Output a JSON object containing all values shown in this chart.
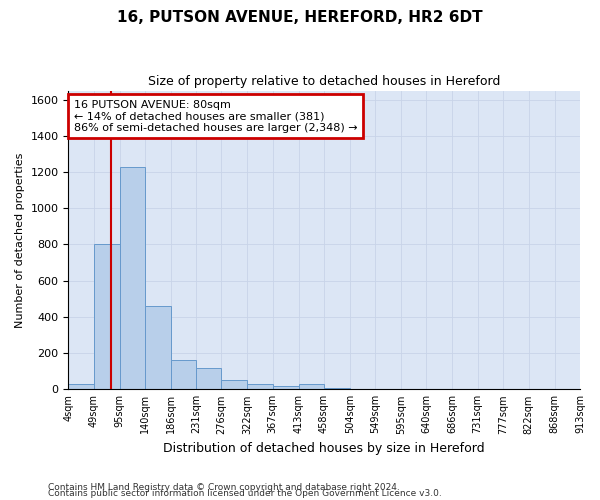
{
  "title": "16, PUTSON AVENUE, HEREFORD, HR2 6DT",
  "subtitle": "Size of property relative to detached houses in Hereford",
  "xlabel": "Distribution of detached houses by size in Hereford",
  "ylabel": "Number of detached properties",
  "footer1": "Contains HM Land Registry data © Crown copyright and database right 2024.",
  "footer2": "Contains public sector information licensed under the Open Government Licence v3.0.",
  "bin_labels": [
    "4sqm",
    "49sqm",
    "95sqm",
    "140sqm",
    "186sqm",
    "231sqm",
    "276sqm",
    "322sqm",
    "367sqm",
    "413sqm",
    "458sqm",
    "504sqm",
    "549sqm",
    "595sqm",
    "640sqm",
    "686sqm",
    "731sqm",
    "777sqm",
    "822sqm",
    "868sqm",
    "913sqm"
  ],
  "bin_edges": [
    4,
    49,
    95,
    140,
    186,
    231,
    276,
    322,
    367,
    413,
    458,
    504,
    549,
    595,
    640,
    686,
    731,
    777,
    822,
    868,
    913
  ],
  "bar_heights": [
    30,
    800,
    1230,
    460,
    160,
    120,
    50,
    30,
    20,
    30,
    5,
    0,
    0,
    0,
    0,
    0,
    0,
    0,
    0,
    0
  ],
  "bar_color": "#b8cfea",
  "bar_edge_color": "#6699cc",
  "grid_color": "#c8d4e8",
  "background_color": "#dce6f5",
  "property_line_x": 80,
  "property_line_color": "#cc0000",
  "annotation_line1": "16 PUTSON AVENUE: 80sqm",
  "annotation_line2": "← 14% of detached houses are smaller (381)",
  "annotation_line3": "86% of semi-detached houses are larger (2,348) →",
  "annotation_box_color": "#cc0000",
  "ylim": [
    0,
    1650
  ],
  "yticks": [
    0,
    200,
    400,
    600,
    800,
    1000,
    1200,
    1400,
    1600
  ],
  "title_fontsize": 11,
  "subtitle_fontsize": 9
}
